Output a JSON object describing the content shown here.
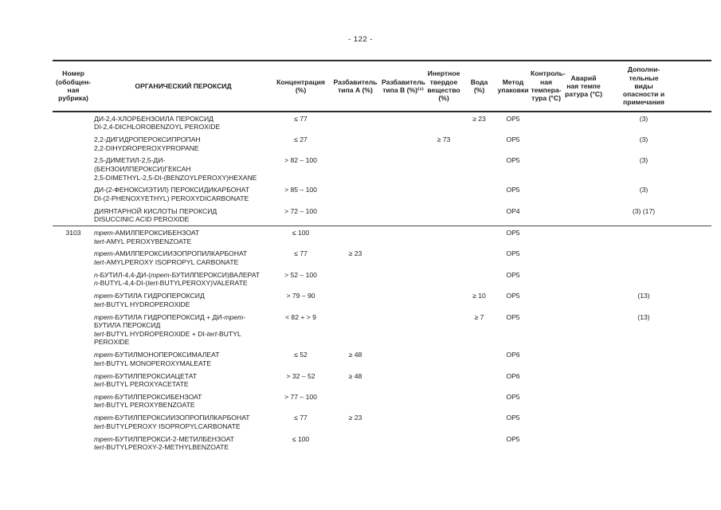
{
  "page": {
    "number_label": "- 122 -"
  },
  "table": {
    "headers": {
      "num": "Номер\n(обобщен-\nная\nрубрика)",
      "name": "ОРГАНИЧЕСКИЙ ПЕРОКСИД",
      "conc": "Концентрация\n(%)",
      "dilA": "Разбавитель\nтипа А (%)",
      "dilB": "Разбавитель\nтипа В (%)⁽¹⁾",
      "inert": "Инертное\nтвердое\nвещество\n(%)",
      "water": "Вода\n(%)",
      "pack": "Метод\nупаковки",
      "ctrl": "Контроль-\nная\nтемпера-\nтура (°C)",
      "emerg": "Аварий\nная темпе\nратура (°C)",
      "notes": "Дополни-\nтельные\nвиды\nопасности и\nпримечания"
    },
    "rows": [
      {
        "num": "",
        "ru": "ДИ-2,4-ХЛОРБЕНЗОИЛА ПЕРОКСИД",
        "en": "DI-2,4-DICHLOROBENZOYL PEROXIDE",
        "conc": "≤ 77",
        "dilA": "",
        "dilB": "",
        "inert": "",
        "water": "≥ 23",
        "pack": "ОР5",
        "ctrl": "",
        "emerg": "",
        "notes": "(3)",
        "section_rule": false
      },
      {
        "num": "",
        "ru": "2,2-ДИГИДРОПЕРОКСИПРОПАН",
        "en": "2,2-DIHYDROPEROXYPROPANE",
        "conc": "≤ 27",
        "dilA": "",
        "dilB": "",
        "inert": "≥ 73",
        "water": "",
        "pack": "ОР5",
        "ctrl": "",
        "emerg": "",
        "notes": "(3)",
        "section_rule": false
      },
      {
        "num": "",
        "ru": "2,5-ДИМЕТИЛ-2,5-ДИ-\n(БЕНЗОИЛПЕРОКСИ)ГЕКСАН",
        "en": "2,5-DIMETHYL-2,5-DI-(BENZOYLPEROXY)HEXANE",
        "conc": "> 82 – 100",
        "dilA": "",
        "dilB": "",
        "inert": "",
        "water": "",
        "pack": "ОР5",
        "ctrl": "",
        "emerg": "",
        "notes": "(3)",
        "section_rule": false
      },
      {
        "num": "",
        "ru": "ДИ-(2-ФЕНОКСИЭТИЛ) ПЕРОКСИДИКАРБОНАТ",
        "en": "DI-(2-PHENOXYETHYL) PEROXYDICARBONATE",
        "conc": "> 85 – 100",
        "dilA": "",
        "dilB": "",
        "inert": "",
        "water": "",
        "pack": "ОР5",
        "ctrl": "",
        "emerg": "",
        "notes": "(3)",
        "section_rule": false
      },
      {
        "num": "",
        "ru": "ДИЯНТАРНОЙ КИСЛОТЫ ПЕРОКСИД",
        "en": "DISUCCINIC ACID PEROXIDE",
        "conc": "> 72 – 100",
        "dilA": "",
        "dilB": "",
        "inert": "",
        "water": "",
        "pack": "ОР4",
        "ctrl": "",
        "emerg": "",
        "notes": "(3) (17)",
        "section_rule": false
      },
      {
        "num": "3103",
        "ru": "*трет*-АМИЛПЕРОКСИБЕНЗОАТ",
        "en": "*tert*-AMYL PEROXYBENZOATE",
        "conc": "≤ 100",
        "dilA": "",
        "dilB": "",
        "inert": "",
        "water": "",
        "pack": "ОР5",
        "ctrl": "",
        "emerg": "",
        "notes": "",
        "section_rule": true
      },
      {
        "num": "",
        "ru": "*трет*-АМИЛПЕРОКСИИЗОПРОПИЛКАРБОНАТ",
        "en": "*tert*-AMYLPEROXY ISOPROPYL CARBONATE",
        "conc": "≤ 77",
        "dilA": "≥ 23",
        "dilB": "",
        "inert": "",
        "water": "",
        "pack": "ОР5",
        "ctrl": "",
        "emerg": "",
        "notes": "",
        "section_rule": false
      },
      {
        "num": "",
        "ru": "*n*-БУТИЛ-4,4-ДИ-(*трет*-БУТИЛПЕРОКСИ)ВАЛЕРАТ",
        "en": "*n*-BUTYL-4,4-DI-(*tert*-BUTYLPEROXY)VALERATE",
        "conc": "> 52 – 100",
        "dilA": "",
        "dilB": "",
        "inert": "",
        "water": "",
        "pack": "ОР5",
        "ctrl": "",
        "emerg": "",
        "notes": "",
        "section_rule": false
      },
      {
        "num": "",
        "ru": "*трет*-БУТИЛА ГИДРОПЕРОКСИД",
        "en": "*tert*-BUTYL HYDROPEROXIDE",
        "conc": "> 79 – 90",
        "dilA": "",
        "dilB": "",
        "inert": "",
        "water": "≥ 10",
        "pack": "ОР5",
        "ctrl": "",
        "emerg": "",
        "notes": "(13)",
        "section_rule": false
      },
      {
        "num": "",
        "ru": "*трет*-БУТИЛА ГИДРОПЕРОКСИД + ДИ-*трет*-\nБУТИЛА ПЕРОКСИД",
        "en": "*tert*-BUTYL HYDROPEROXIDE + DI-*tert*-BUTYL\nPEROXIDE",
        "conc": "< 82 + > 9",
        "dilA": "",
        "dilB": "",
        "inert": "",
        "water": "≥ 7",
        "pack": "ОР5",
        "ctrl": "",
        "emerg": "",
        "notes": "(13)",
        "section_rule": false
      },
      {
        "num": "",
        "ru": "*трет*-БУТИЛМОНОПЕРОКСИМАЛЕАТ",
        "en": "*tert*-BUTYL MONOPEROXYMALEATE",
        "conc": "≤ 52",
        "dilA": "≥ 48",
        "dilB": "",
        "inert": "",
        "water": "",
        "pack": "ОР6",
        "ctrl": "",
        "emerg": "",
        "notes": "",
        "section_rule": false
      },
      {
        "num": "",
        "ru": "*трет*-БУТИЛПЕРОКСИАЦЕТАТ",
        "en": "*tert*-BUTYL PEROXYACETATE",
        "conc": "> 32 – 52",
        "dilA": "≥ 48",
        "dilB": "",
        "inert": "",
        "water": "",
        "pack": "ОР6",
        "ctrl": "",
        "emerg": "",
        "notes": "",
        "section_rule": false
      },
      {
        "num": "",
        "ru": "*трет*-БУТИЛПЕРОКСИБЕНЗОАТ",
        "en": "*tert*-BUTYL PEROXYBENZOATE",
        "conc": "> 77 – 100",
        "dilA": "",
        "dilB": "",
        "inert": "",
        "water": "",
        "pack": "ОР5",
        "ctrl": "",
        "emerg": "",
        "notes": "",
        "section_rule": false
      },
      {
        "num": "",
        "ru": "*трет*-БУТИЛПЕРОКСИИЗОПРОПИЛКАРБОНАТ",
        "en": "*tert*-BUTYLPEROXY ISOPROPYLCARBONATE",
        "conc": "≤ 77",
        "dilA": "≥ 23",
        "dilB": "",
        "inert": "",
        "water": "",
        "pack": "ОР5",
        "ctrl": "",
        "emerg": "",
        "notes": "",
        "section_rule": false
      },
      {
        "num": "",
        "ru": "*трет*-БУТИЛПЕРОКСИ-2-МЕТИЛБЕНЗОАТ",
        "en": "*tert*-BUTYLPEROXY-2-METHYLBENZOATE",
        "conc": "≤ 100",
        "dilA": "",
        "dilB": "",
        "inert": "",
        "water": "",
        "pack": "ОР5",
        "ctrl": "",
        "emerg": "",
        "notes": "",
        "section_rule": false
      }
    ]
  }
}
